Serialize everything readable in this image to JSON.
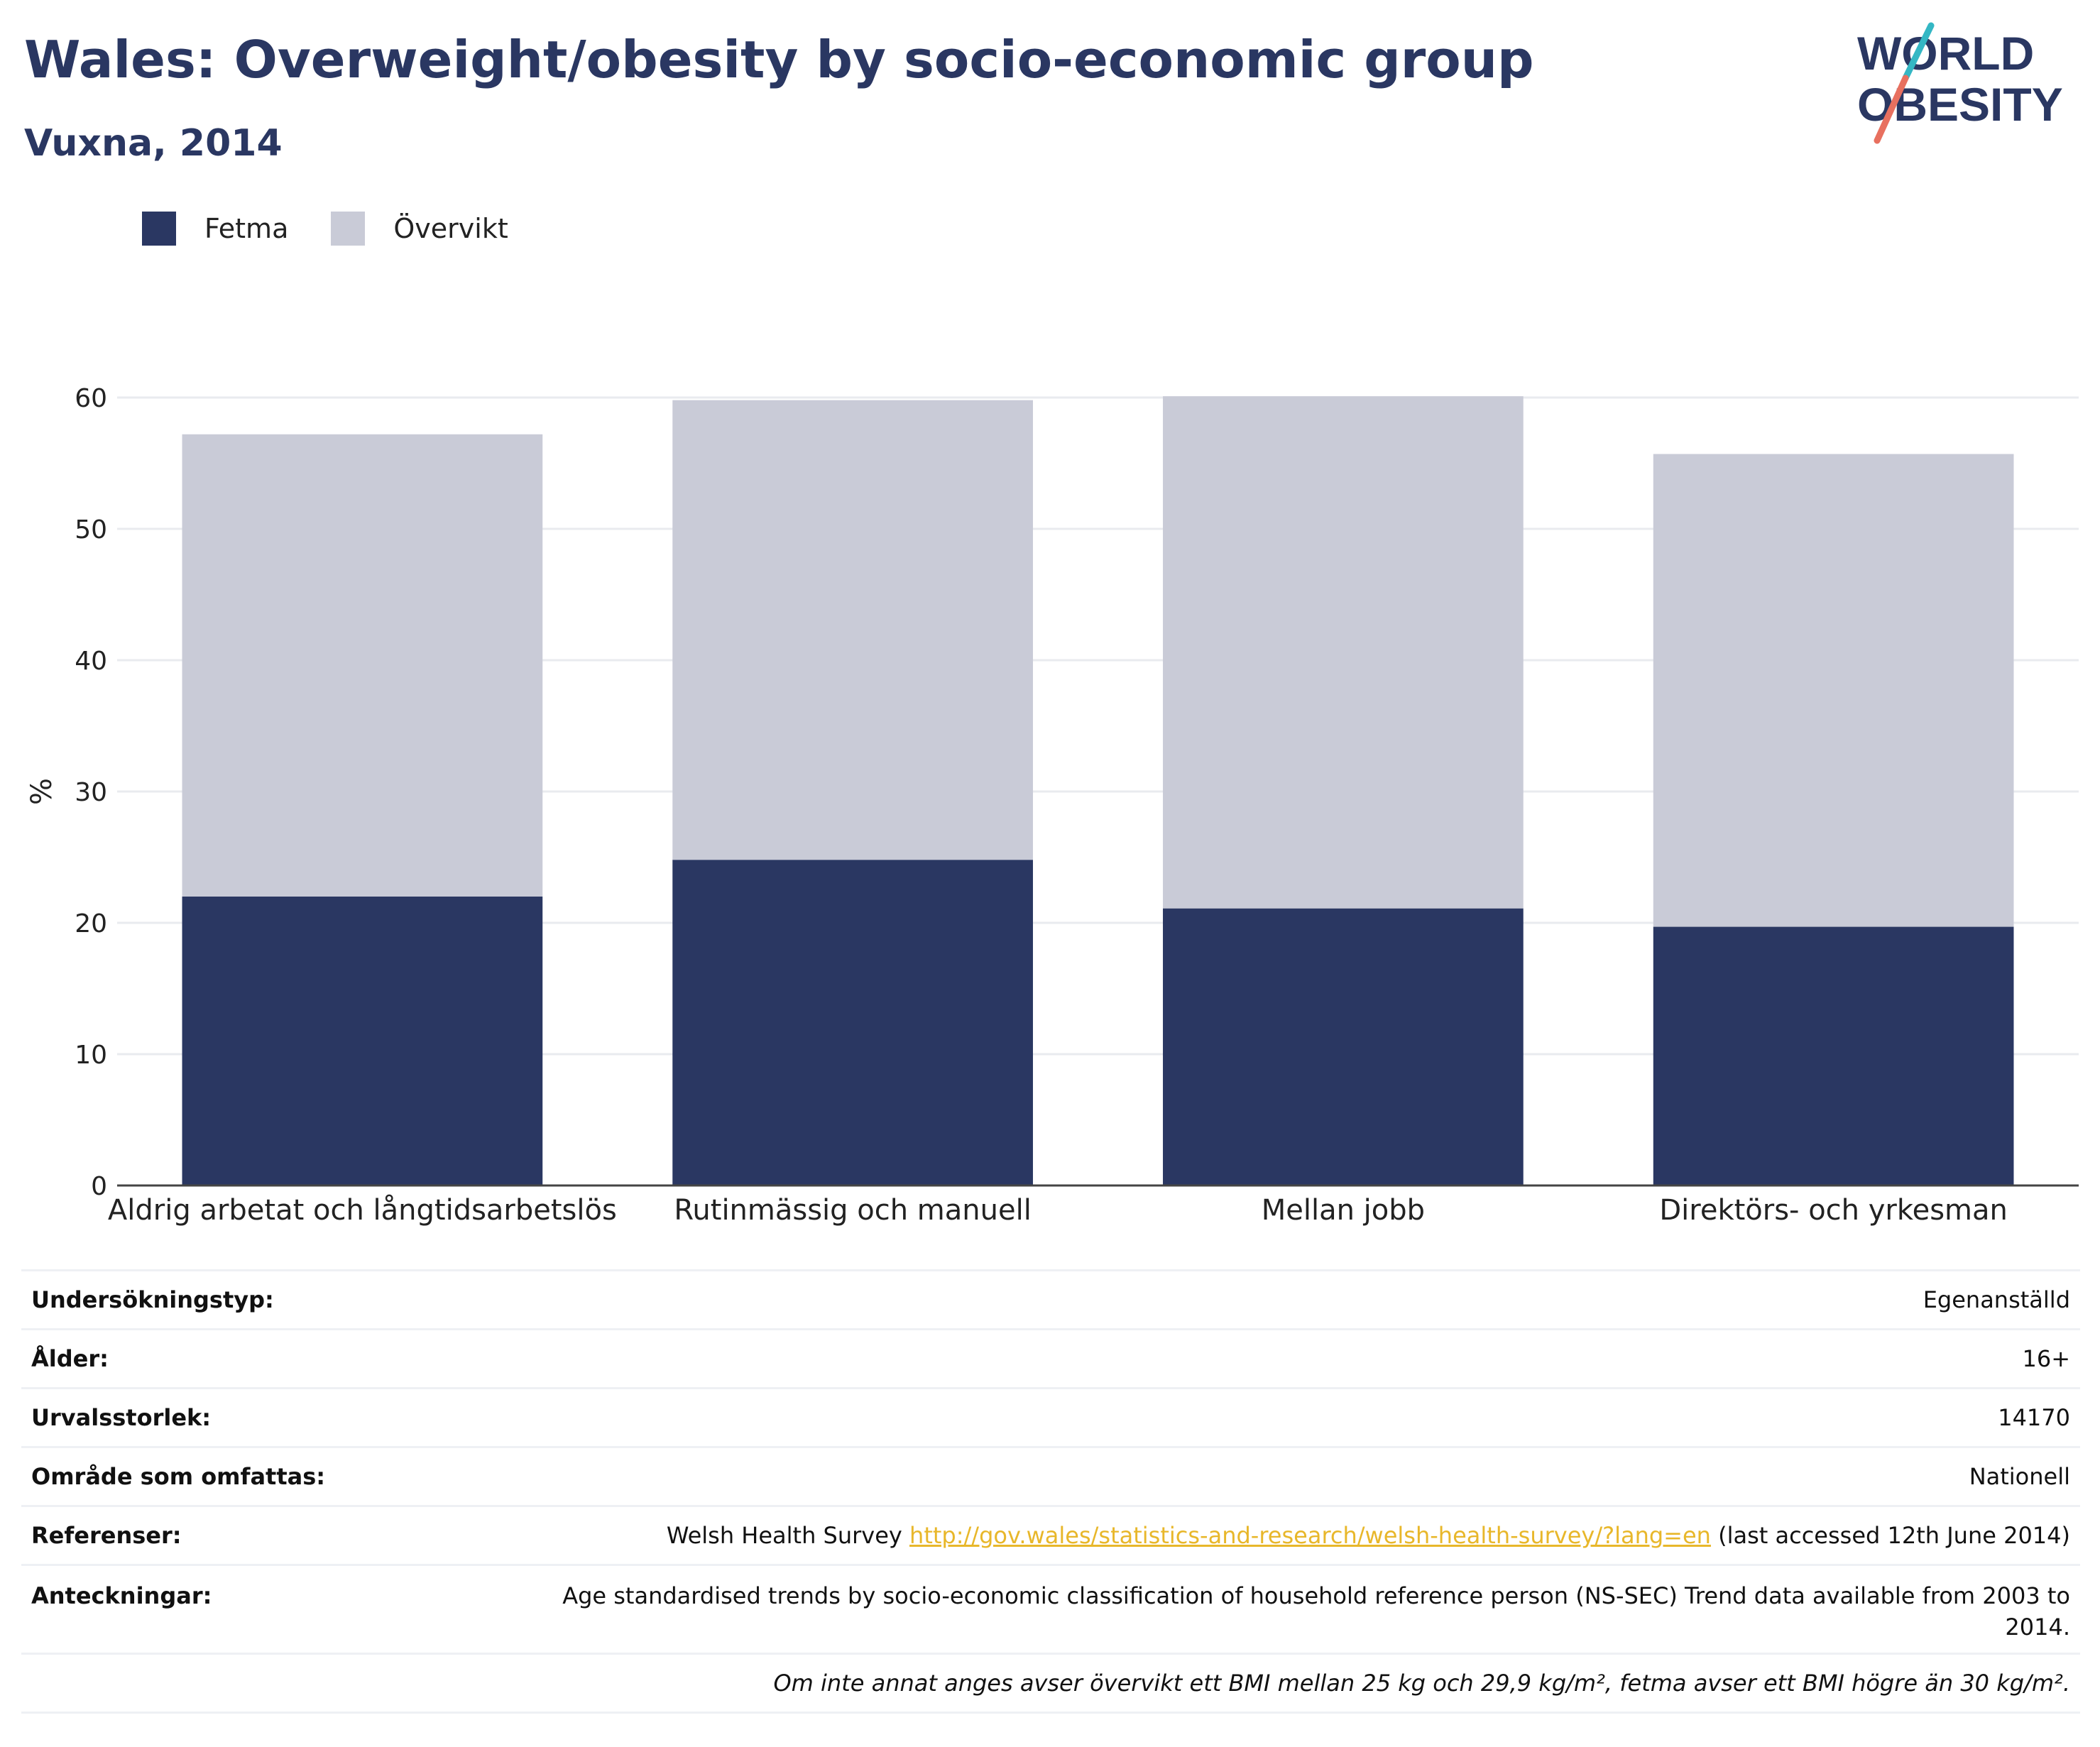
{
  "header": {
    "title": "Wales: Overweight/obesity by socio-economic group",
    "subtitle": "Vuxna, 2014",
    "logo": {
      "line1": "WORLD",
      "line2": "OBESITY"
    }
  },
  "legend": [
    {
      "label": "Fetma",
      "color": "#2a3762"
    },
    {
      "label": "Övervikt",
      "color": "#c9cbd7"
    }
  ],
  "chart_data": {
    "type": "bar",
    "stacked": true,
    "categories": [
      "Aldrig arbetat och långtidsarbetslös",
      "Rutinmässig och manuell",
      "Mellan jobb",
      "Direktörs- och yrkesman"
    ],
    "series": [
      {
        "name": "Fetma",
        "values": [
          22,
          24.8,
          21.1,
          19.7
        ],
        "color": "#2a3762"
      },
      {
        "name": "Övervikt",
        "values": [
          35.2,
          35,
          39,
          36
        ],
        "color": "#c9cbd7"
      }
    ],
    "ylabel": "%",
    "ylim": [
      0,
      60
    ],
    "yticks": [
      0,
      10,
      20,
      30,
      40,
      50,
      60
    ],
    "grid": true
  },
  "meta": {
    "survey_type_label": "Undersökningstyp:",
    "survey_type_value": "Egenanställd",
    "age_label": "Ålder:",
    "age_value": "16+",
    "sample_label": "Urvalsstorlek:",
    "sample_value": "14170",
    "area_label": "Område som omfattas:",
    "area_value": "Nationell",
    "refs_label": "Referenser:",
    "refs_prefix": "Welsh Health Survey ",
    "refs_link": "http://gov.wales/statistics-and-research/welsh-health-survey/?lang=en",
    "refs_suffix": " (last accessed 12th June 2014)",
    "notes_label": "Anteckningar:",
    "notes_value": "Age standardised trends by socio-economic classification of household reference person (NS-SEC) Trend data available from 2003 to 2014.",
    "footnote": "Om inte annat anges avser övervikt ett BMI mellan 25 kg och 29,9 kg/m², fetma avser ett BMI högre än 30 kg/m²."
  }
}
